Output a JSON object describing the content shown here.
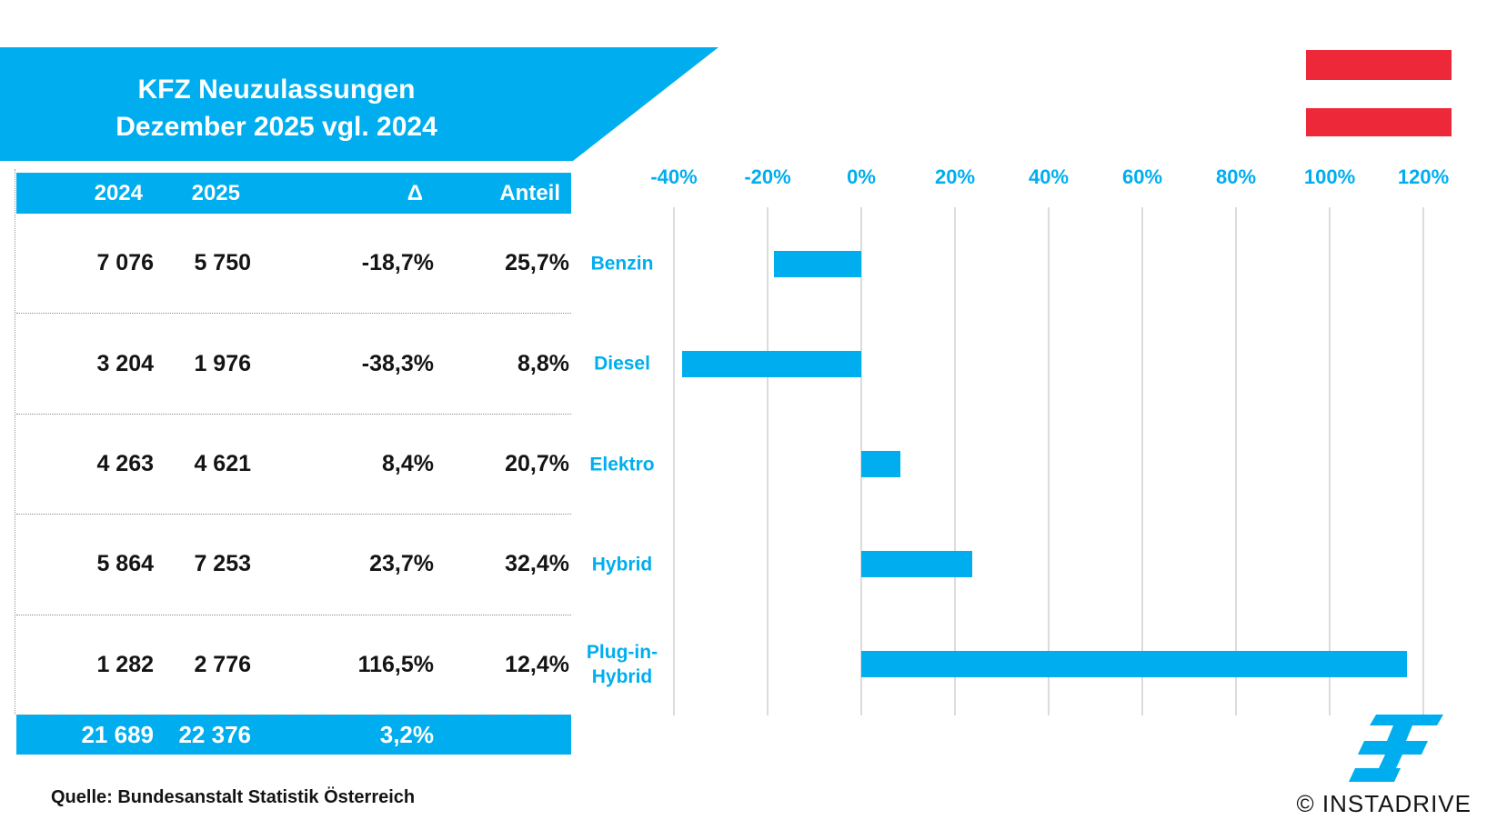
{
  "title": {
    "line1": "KFZ Neuzulassungen",
    "line2": "Dezember 2025 vgl. 2024"
  },
  "colors": {
    "accent_blue": "#00AEEF",
    "flag_red": "#ED2939",
    "gridline": "#DCDCDC"
  },
  "table": {
    "headers": [
      "2024",
      "2025",
      "Δ",
      "Anteil"
    ],
    "rows": [
      [
        "7 076",
        "5 750",
        "-18,7%",
        "25,7%"
      ],
      [
        "3 204",
        "1 976",
        "-38,3%",
        "8,8%"
      ],
      [
        "4 263",
        "4 621",
        "8,4%",
        "20,7%"
      ],
      [
        "5 864",
        "7 253",
        "23,7%",
        "32,4%"
      ],
      [
        "1 282",
        "2 776",
        "116,5%",
        "12,4%"
      ]
    ],
    "total": [
      "21 689",
      "22 376",
      "3,2%",
      ""
    ]
  },
  "source": "Quelle: Bundesanstalt Statistik Österreich",
  "branding": {
    "copyright": "© INSTADRIVE"
  },
  "chart_data": {
    "type": "bar",
    "orientation": "horizontal",
    "title": "KFZ Neuzulassungen Dezember 2025 vgl. 2024",
    "categories": [
      "Benzin",
      "Diesel",
      "Elektro",
      "Hybrid",
      "Plug-in-Hybrid"
    ],
    "category_display": [
      [
        "Benzin"
      ],
      [
        "Diesel"
      ],
      [
        "Elektro"
      ],
      [
        "Hybrid"
      ],
      [
        "Plug-in-",
        "Hybrid"
      ]
    ],
    "values": [
      -18.7,
      -38.3,
      8.4,
      23.7,
      116.5
    ],
    "unit": "%",
    "xlim": [
      -40,
      120
    ],
    "grid": "vertical",
    "legend": "none",
    "bar_color": "#00AEEF",
    "x_ticks": [
      {
        "label": "-40%",
        "value": -40
      },
      {
        "label": "-20%",
        "value": -20
      },
      {
        "label": "0%",
        "value": 0
      },
      {
        "label": "20%",
        "value": 20
      },
      {
        "label": "40%",
        "value": 40
      },
      {
        "label": "60%",
        "value": 60
      },
      {
        "label": "80%",
        "value": 80
      },
      {
        "label": "100%",
        "value": 100
      },
      {
        "label": "120%",
        "value": 120
      }
    ]
  }
}
